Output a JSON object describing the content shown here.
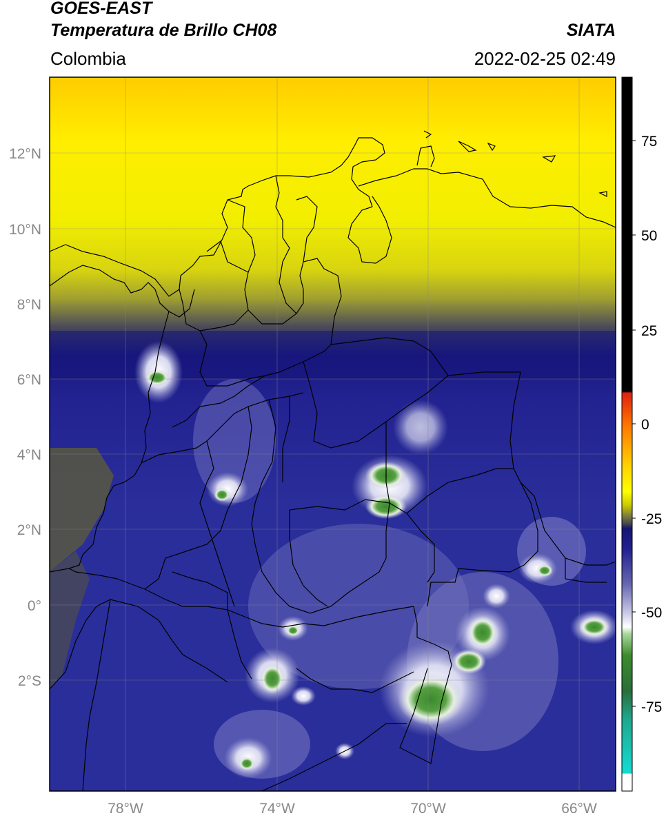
{
  "header": {
    "satellite": "GOES-EAST",
    "product": "Temperatura de Brillo CH08",
    "region": "Colombia",
    "organization": "SIATA",
    "datetime": "2022-02-25 02:49"
  },
  "map": {
    "lat_labels": [
      "12°N",
      "10°N",
      "8°N",
      "6°N",
      "4°N",
      "2°N",
      "0°",
      "2°S"
    ],
    "lon_labels": [
      "78°W",
      "74°W",
      "70°W",
      "66°W"
    ]
  },
  "colorbar": {
    "tick_labels": [
      "75",
      "50",
      "25",
      "0",
      "-25",
      "-50",
      "-75"
    ],
    "colors": {
      "black_top": "#000000",
      "red": "#e02010",
      "yellow": "#ffff00",
      "olive": "#5a5a3c",
      "navy": "#1e1e8c",
      "lavender": "#c8c8e6",
      "white": "#ffffff",
      "green": "#3c8c2c",
      "cyan": "#14dcd2"
    }
  }
}
